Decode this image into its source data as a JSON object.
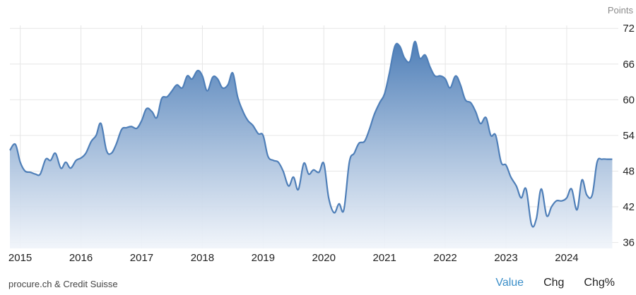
{
  "source": "procure.ch & Credit Suisse",
  "tabs": [
    {
      "label": "Value",
      "active": true
    },
    {
      "label": "Chg",
      "active": false
    },
    {
      "label": "Chg%",
      "active": false
    }
  ],
  "colors": {
    "line": "#4f7fb8",
    "fill_top": "#4f7fb8",
    "fill_bottom": "#f0f4fa",
    "grid": "#e6e6e6",
    "active_tab": "#3a8ec8"
  },
  "chart_data": {
    "type": "area",
    "title": "",
    "xlabel": "",
    "ylabel": "Points",
    "ylim": [
      35,
      72.5
    ],
    "xlim": [
      2014.83,
      2024.85
    ],
    "yticks": [
      36,
      42,
      48,
      54,
      60,
      66,
      72
    ],
    "xticks": [
      "2015",
      "2016",
      "2017",
      "2018",
      "2019",
      "2020",
      "2021",
      "2022",
      "2023",
      "2024"
    ],
    "grid": true,
    "legend": "none",
    "series": [
      {
        "values": [
          [
            2014.83,
            51.5
          ],
          [
            2014.92,
            52.5
          ],
          [
            2015.0,
            49.5
          ],
          [
            2015.08,
            48.0
          ],
          [
            2015.17,
            47.8
          ],
          [
            2015.25,
            47.5
          ],
          [
            2015.33,
            47.5
          ],
          [
            2015.42,
            50.0
          ],
          [
            2015.5,
            49.8
          ],
          [
            2015.58,
            51.0
          ],
          [
            2015.67,
            48.5
          ],
          [
            2015.75,
            49.5
          ],
          [
            2015.83,
            48.5
          ],
          [
            2015.92,
            49.8
          ],
          [
            2016.0,
            50.2
          ],
          [
            2016.08,
            51.0
          ],
          [
            2016.17,
            53.0
          ],
          [
            2016.25,
            54.0
          ],
          [
            2016.33,
            56.0
          ],
          [
            2016.42,
            51.5
          ],
          [
            2016.5,
            51.0
          ],
          [
            2016.58,
            52.5
          ],
          [
            2016.67,
            55.0
          ],
          [
            2016.75,
            55.3
          ],
          [
            2016.83,
            55.5
          ],
          [
            2016.92,
            55.2
          ],
          [
            2017.0,
            56.5
          ],
          [
            2017.08,
            58.5
          ],
          [
            2017.17,
            58.0
          ],
          [
            2017.25,
            57.0
          ],
          [
            2017.33,
            60.2
          ],
          [
            2017.42,
            60.5
          ],
          [
            2017.5,
            61.5
          ],
          [
            2017.58,
            62.5
          ],
          [
            2017.67,
            62.0
          ],
          [
            2017.75,
            64.0
          ],
          [
            2017.83,
            63.5
          ],
          [
            2017.92,
            64.9
          ],
          [
            2018.0,
            64.0
          ],
          [
            2018.08,
            61.5
          ],
          [
            2018.17,
            63.8
          ],
          [
            2018.25,
            63.5
          ],
          [
            2018.33,
            62.0
          ],
          [
            2018.42,
            62.5
          ],
          [
            2018.5,
            64.5
          ],
          [
            2018.58,
            60.5
          ],
          [
            2018.67,
            58.0
          ],
          [
            2018.75,
            56.5
          ],
          [
            2018.83,
            55.7
          ],
          [
            2018.92,
            54.3
          ],
          [
            2019.0,
            54.0
          ],
          [
            2019.08,
            50.5
          ],
          [
            2019.17,
            49.8
          ],
          [
            2019.25,
            49.5
          ],
          [
            2019.33,
            48.0
          ],
          [
            2019.42,
            45.5
          ],
          [
            2019.5,
            47.0
          ],
          [
            2019.58,
            44.9
          ],
          [
            2019.67,
            49.3
          ],
          [
            2019.75,
            47.5
          ],
          [
            2019.83,
            48.2
          ],
          [
            2019.92,
            47.8
          ],
          [
            2020.0,
            49.3
          ],
          [
            2020.08,
            43.5
          ],
          [
            2020.17,
            41.0
          ],
          [
            2020.25,
            42.5
          ],
          [
            2020.33,
            41.5
          ],
          [
            2020.42,
            49.5
          ],
          [
            2020.5,
            51.0
          ],
          [
            2020.58,
            52.7
          ],
          [
            2020.67,
            53.0
          ],
          [
            2020.75,
            55.0
          ],
          [
            2020.83,
            57.5
          ],
          [
            2020.92,
            59.5
          ],
          [
            2021.0,
            61.0
          ],
          [
            2021.08,
            64.5
          ],
          [
            2021.17,
            69.0
          ],
          [
            2021.25,
            69.0
          ],
          [
            2021.33,
            67.0
          ],
          [
            2021.42,
            66.5
          ],
          [
            2021.5,
            69.8
          ],
          [
            2021.58,
            67.0
          ],
          [
            2021.67,
            67.5
          ],
          [
            2021.75,
            65.5
          ],
          [
            2021.83,
            64.0
          ],
          [
            2021.92,
            64.0
          ],
          [
            2022.0,
            63.5
          ],
          [
            2022.08,
            62.0
          ],
          [
            2022.17,
            64.0
          ],
          [
            2022.25,
            62.5
          ],
          [
            2022.33,
            60.0
          ],
          [
            2022.42,
            59.5
          ],
          [
            2022.5,
            58.0
          ],
          [
            2022.58,
            56.0
          ],
          [
            2022.67,
            57.0
          ],
          [
            2022.75,
            54.0
          ],
          [
            2022.83,
            54.0
          ],
          [
            2022.92,
            49.5
          ],
          [
            2023.0,
            49.0
          ],
          [
            2023.08,
            47.0
          ],
          [
            2023.17,
            45.5
          ],
          [
            2023.25,
            43.5
          ],
          [
            2023.33,
            45.0
          ],
          [
            2023.42,
            39.0
          ],
          [
            2023.5,
            40.0
          ],
          [
            2023.58,
            45.0
          ],
          [
            2023.67,
            40.5
          ],
          [
            2023.75,
            42.0
          ],
          [
            2023.83,
            43.0
          ],
          [
            2023.92,
            43.0
          ],
          [
            2024.0,
            43.5
          ],
          [
            2024.08,
            45.0
          ],
          [
            2024.17,
            41.5
          ],
          [
            2024.25,
            46.5
          ],
          [
            2024.33,
            44.0
          ],
          [
            2024.42,
            44.0
          ],
          [
            2024.5,
            49.5
          ],
          [
            2024.58,
            50.0
          ],
          [
            2024.67,
            50.0
          ],
          [
            2024.75,
            50.0
          ]
        ]
      }
    ]
  }
}
